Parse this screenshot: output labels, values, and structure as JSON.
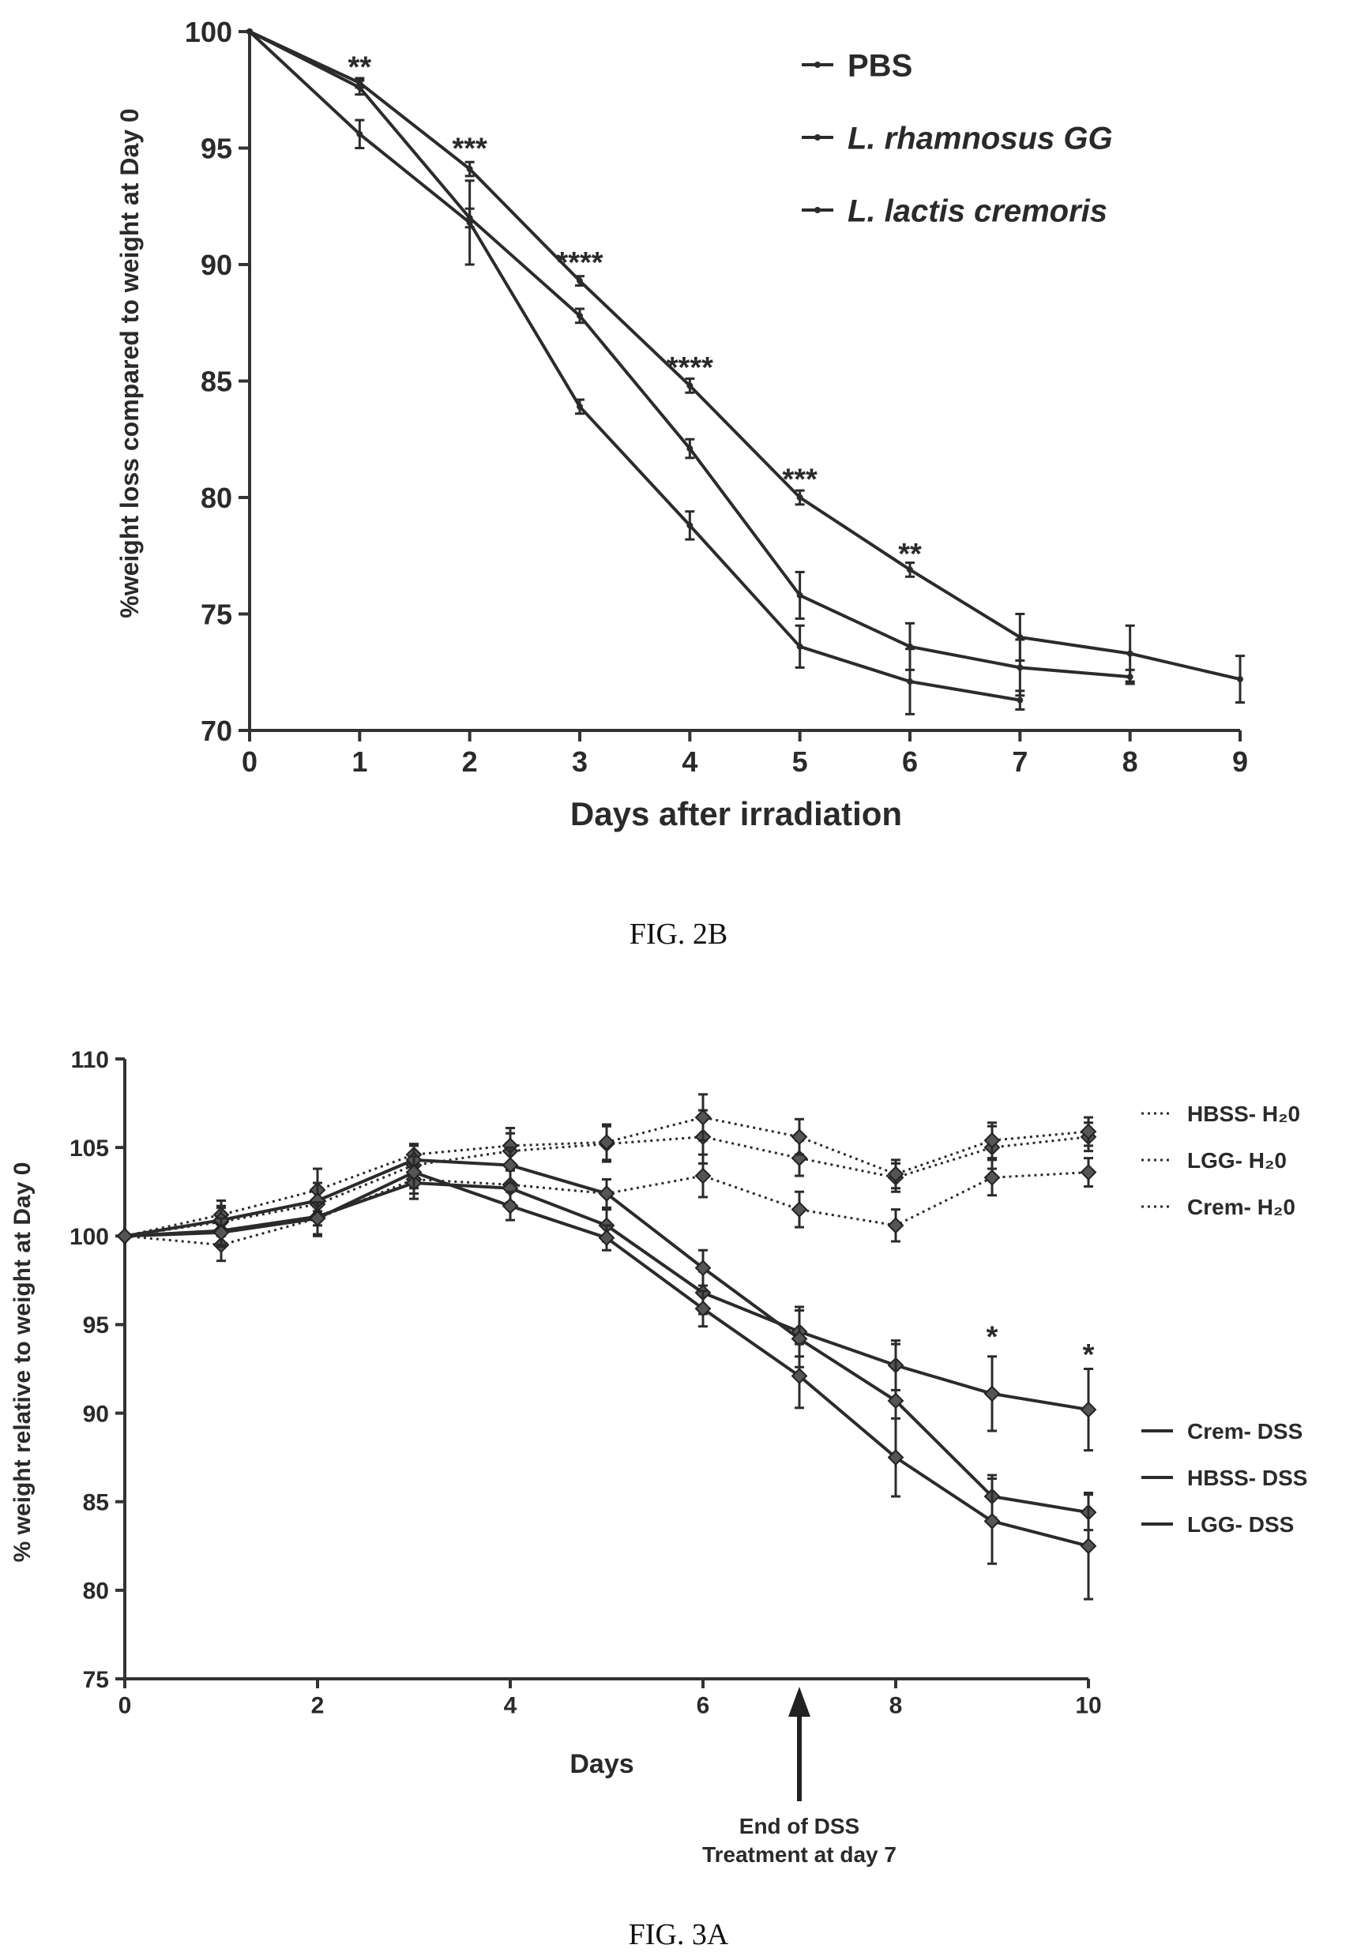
{
  "chart_data": [
    {
      "type": "line",
      "caption": "FIG. 2B",
      "title": "",
      "xlabel": "Days after irradiation",
      "ylabel": "%weight loss compared to weight at Day 0",
      "xlim": [
        0,
        9
      ],
      "ylim": [
        70,
        100
      ],
      "x_ticks": [
        0,
        1,
        2,
        3,
        4,
        5,
        6,
        7,
        8,
        9
      ],
      "y_ticks": [
        70,
        75,
        80,
        85,
        90,
        95,
        100
      ],
      "grid": false,
      "legend_position": "top-right",
      "series": [
        {
          "name": "PBS",
          "x": [
            0,
            1,
            2,
            3,
            4,
            5,
            6,
            7,
            8,
            9
          ],
          "y": [
            100,
            97.8,
            94.1,
            89.3,
            84.8,
            80.0,
            76.9,
            74.0,
            73.3,
            72.2
          ],
          "err": [
            0,
            0.2,
            0.3,
            0.2,
            0.3,
            0.3,
            0.3,
            1.0,
            1.2,
            1.0
          ]
        },
        {
          "name": "L. rhamnosus GG",
          "x": [
            0,
            1,
            2,
            3,
            4,
            5,
            6,
            7
          ],
          "y": [
            100,
            95.6,
            91.8,
            83.9,
            78.8,
            73.6,
            72.1,
            71.3
          ],
          "err": [
            0,
            0.6,
            1.8,
            0.3,
            0.6,
            0.9,
            1.4,
            0.4
          ]
        },
        {
          "name": "L. lactis cremoris",
          "x": [
            0,
            1,
            2,
            3,
            4,
            5,
            6,
            7,
            8
          ],
          "y": [
            100,
            97.6,
            92.0,
            87.8,
            82.1,
            75.8,
            73.6,
            72.7,
            72.3
          ],
          "err": [
            0,
            0.3,
            0.4,
            0.3,
            0.4,
            1.0,
            1.0,
            1.2,
            0.3
          ]
        }
      ],
      "annotations": [
        {
          "x": 1,
          "y": 98.7,
          "text": "**"
        },
        {
          "x": 2,
          "y": 95.2,
          "text": "***"
        },
        {
          "x": 3,
          "y": 90.3,
          "text": "****"
        },
        {
          "x": 4,
          "y": 85.8,
          "text": "****"
        },
        {
          "x": 5,
          "y": 81.0,
          "text": "***"
        },
        {
          "x": 6,
          "y": 77.8,
          "text": "**"
        }
      ]
    },
    {
      "type": "line",
      "caption": "FIG. 3A",
      "title": "",
      "xlabel": "Days",
      "ylabel": "% weight relative to weight at Day 0",
      "xlim": [
        0,
        10
      ],
      "ylim": [
        75,
        110
      ],
      "x_ticks": [
        0,
        2,
        4,
        6,
        8,
        10
      ],
      "y_ticks": [
        75,
        80,
        85,
        90,
        95,
        100,
        105,
        110
      ],
      "grid": false,
      "legend_position": "right",
      "series": [
        {
          "name": "HBSS- H₂0",
          "style": "dotted",
          "x": [
            0,
            1,
            2,
            3,
            4,
            5,
            6,
            7,
            8,
            9,
            10
          ],
          "y": [
            100,
            100.8,
            101.8,
            104.0,
            104.8,
            105.2,
            105.6,
            104.4,
            103.3,
            105.0,
            105.6
          ],
          "err": [
            0,
            0.8,
            1.2,
            0.6,
            1.0,
            1.0,
            1.5,
            1.0,
            0.8,
            1.2,
            0.8
          ]
        },
        {
          "name": "LGG- H₂0",
          "style": "dotted",
          "x": [
            0,
            1,
            2,
            3,
            4,
            5,
            6,
            7,
            8,
            9,
            10
          ],
          "y": [
            100,
            101.2,
            102.6,
            104.6,
            105.1,
            105.3,
            106.7,
            105.6,
            103.5,
            105.4,
            105.9
          ],
          "err": [
            0,
            0.8,
            1.2,
            0.6,
            1.0,
            1.0,
            1.3,
            1.0,
            0.8,
            1.0,
            0.8
          ]
        },
        {
          "name": "Crem- H₂0",
          "style": "dotted",
          "x": [
            0,
            1,
            2,
            3,
            4,
            5,
            6,
            7,
            8,
            9,
            10
          ],
          "y": [
            100,
            99.5,
            101.0,
            103.2,
            102.9,
            102.4,
            103.4,
            101.5,
            100.6,
            103.3,
            103.6
          ],
          "err": [
            0,
            0.9,
            1.0,
            0.8,
            1.0,
            0.8,
            1.2,
            1.0,
            0.9,
            1.0,
            0.8
          ]
        },
        {
          "name": "Crem- DSS",
          "style": "solid",
          "x": [
            0,
            1,
            2,
            3,
            4,
            5,
            6,
            7,
            8,
            9,
            10
          ],
          "y": [
            100,
            100.3,
            101.1,
            103.0,
            102.7,
            100.6,
            96.8,
            94.6,
            92.7,
            91.1,
            90.2
          ],
          "err": [
            0,
            0.8,
            1.0,
            0.9,
            1.0,
            0.9,
            1.2,
            1.4,
            1.4,
            2.1,
            2.3
          ]
        },
        {
          "name": "HBSS- DSS",
          "style": "solid",
          "x": [
            0,
            1,
            2,
            3,
            4,
            5,
            6,
            7,
            8,
            9,
            10
          ],
          "y": [
            100,
            100.9,
            102.0,
            104.3,
            104.0,
            102.4,
            98.2,
            94.2,
            90.7,
            85.3,
            84.4
          ],
          "err": [
            0,
            0.8,
            1.0,
            0.8,
            1.0,
            0.8,
            1.0,
            1.6,
            3.2,
            1.2,
            1.0
          ]
        },
        {
          "name": "LGG- DSS",
          "style": "solid",
          "x": [
            0,
            1,
            2,
            3,
            4,
            5,
            6,
            7,
            8,
            9,
            10
          ],
          "y": [
            100,
            100.2,
            101.0,
            103.6,
            101.7,
            99.9,
            95.9,
            92.1,
            87.5,
            83.9,
            82.5
          ],
          "err": [
            0,
            0.8,
            0.9,
            0.9,
            0.8,
            0.7,
            1.0,
            1.8,
            2.2,
            2.4,
            3.0
          ]
        }
      ],
      "annotations": [
        {
          "x": 9,
          "y": 94.6,
          "text": "*"
        },
        {
          "x": 10,
          "y": 93.6,
          "text": "*"
        }
      ],
      "arrow": {
        "x": 7,
        "label_line1": "End of DSS",
        "label_line2": "Treatment at day 7"
      }
    }
  ]
}
